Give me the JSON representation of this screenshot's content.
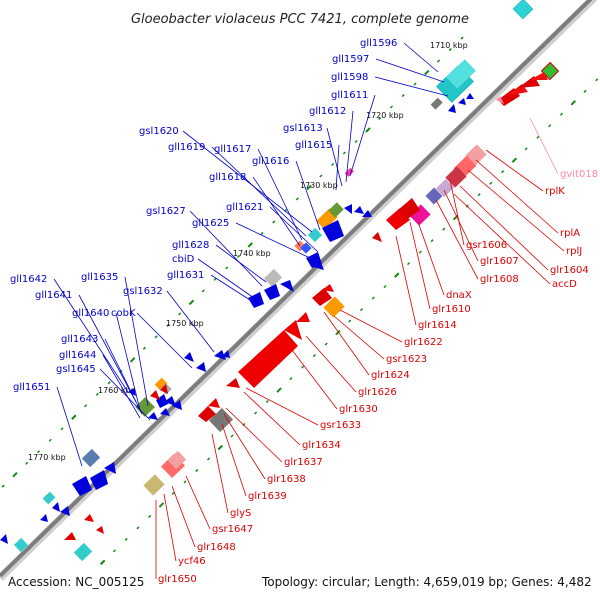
{
  "title": "Gloeobacter violaceus PCC 7421, complete genome",
  "footer": {
    "accession": "Accession: NC_005125",
    "topology": "Topology: circular; Length: 4,659,019 bp; Genes: 4,482"
  },
  "scale_labels": [
    "1710 kbp",
    "1720 kbp",
    "1730 kbp",
    "1740 kbp",
    "1750 kbp",
    "1760 kbp",
    "1770 kbp"
  ],
  "colors": {
    "forward_strand": "#0000cc",
    "reverse_strand": "#dd0000",
    "trna": "#ff88aa",
    "backbone": "#888888",
    "tick": "#118811"
  },
  "forward_genes": [
    "gll1596",
    "gll1597",
    "gll1598",
    "gll1611",
    "gll1612",
    "gsl1613",
    "gll1615",
    "gsl1620",
    "gll1619",
    "gll1617",
    "gll1616",
    "gll1618",
    "gsl1627",
    "gll1621",
    "gll1625",
    "gll1628",
    "cbiD",
    "gll1631",
    "gll1642",
    "gll1635",
    "gll1641",
    "gsl1632",
    "gll1640",
    "cobK",
    "gll1643",
    "gll1644",
    "gsl1645",
    "gll1651"
  ],
  "reverse_genes": [
    "gvit018",
    "rplK",
    "rplA",
    "rplJ",
    "gsr1606",
    "glr1604",
    "glr1607",
    "accD",
    "glr1608",
    "dnaX",
    "glr1610",
    "glr1614",
    "glr1622",
    "gsr1623",
    "glr1624",
    "glr1626",
    "glr1630",
    "gsr1633",
    "glr1634",
    "glr1637",
    "glr1638",
    "glr1639",
    "glyS",
    "gsr1647",
    "glr1648",
    "ycf46",
    "glr1650"
  ]
}
